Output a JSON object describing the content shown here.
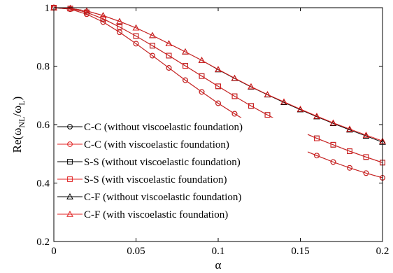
{
  "chart_data": {
    "type": "line",
    "xlabel": "α",
    "ylabel": {
      "base": "Re(ω",
      "sub1": "NL",
      "mid": "/ω",
      "sub2": "L",
      "end": ")"
    },
    "xlim": [
      0,
      0.2
    ],
    "ylim": [
      0.2,
      1.0
    ],
    "xticks": [
      0,
      0.05,
      0.1,
      0.15,
      0.2
    ],
    "xtick_labels": [
      "0",
      "0.05",
      "0.1",
      "0.15",
      "0.2"
    ],
    "yticks": [
      0.2,
      0.4,
      0.6,
      0.8,
      1.0
    ],
    "ytick_labels": [
      "0.2",
      "0.4",
      "0.6",
      "0.8",
      "1"
    ],
    "grid": false,
    "legend_position": "bottom-left",
    "x": [
      0,
      0.01,
      0.02,
      0.03,
      0.04,
      0.05,
      0.06,
      0.07,
      0.08,
      0.09,
      0.1,
      0.11,
      0.12,
      0.13,
      0.14,
      0.15,
      0.16,
      0.17,
      0.18,
      0.19,
      0.2
    ],
    "series": [
      {
        "name": "C-C (without viscoelastic foundation)",
        "marker": "circle",
        "color": "#000000",
        "values": [
          1.0,
          0.995,
          0.978,
          0.951,
          0.916,
          0.877,
          0.836,
          0.794,
          0.752,
          0.712,
          0.673,
          0.637,
          0.603,
          0.572,
          0.543,
          0.517,
          0.494,
          0.472,
          0.452,
          0.434,
          0.418
        ]
      },
      {
        "name": "C-C (with viscoelastic foundation)",
        "marker": "circle",
        "color": "#e02020",
        "values": [
          1.0,
          0.995,
          0.978,
          0.951,
          0.916,
          0.877,
          0.836,
          0.794,
          0.752,
          0.712,
          0.673,
          0.637,
          0.603,
          0.572,
          0.543,
          0.517,
          0.494,
          0.472,
          0.452,
          0.434,
          0.418
        ]
      },
      {
        "name": "S-S (without viscoelastic foundation)",
        "marker": "square",
        "color": "#000000",
        "values": [
          1.0,
          0.997,
          0.984,
          0.962,
          0.934,
          0.903,
          0.87,
          0.836,
          0.801,
          0.766,
          0.731,
          0.697,
          0.664,
          0.633,
          0.604,
          0.577,
          0.553,
          0.531,
          0.509,
          0.489,
          0.47
        ]
      },
      {
        "name": "S-S (with viscoelastic foundation)",
        "marker": "square",
        "color": "#e02020",
        "values": [
          1.0,
          0.997,
          0.984,
          0.962,
          0.934,
          0.903,
          0.87,
          0.836,
          0.801,
          0.766,
          0.731,
          0.697,
          0.664,
          0.633,
          0.604,
          0.577,
          0.553,
          0.531,
          0.509,
          0.489,
          0.47
        ]
      },
      {
        "name": "C-F (without viscoelastic foundation)",
        "marker": "triangle",
        "color": "#000000",
        "values": [
          1.0,
          0.998,
          0.989,
          0.973,
          0.953,
          0.931,
          0.905,
          0.877,
          0.849,
          0.82,
          0.788,
          0.758,
          0.729,
          0.702,
          0.676,
          0.651,
          0.627,
          0.604,
          0.582,
          0.561,
          0.54
        ]
      },
      {
        "name": "C-F (with viscoelastic foundation)",
        "marker": "triangle",
        "color": "#e02020",
        "values": [
          1.0,
          0.998,
          0.989,
          0.973,
          0.953,
          0.931,
          0.905,
          0.877,
          0.849,
          0.82,
          0.789,
          0.759,
          0.73,
          0.703,
          0.678,
          0.653,
          0.629,
          0.606,
          0.585,
          0.564,
          0.544
        ]
      }
    ]
  }
}
